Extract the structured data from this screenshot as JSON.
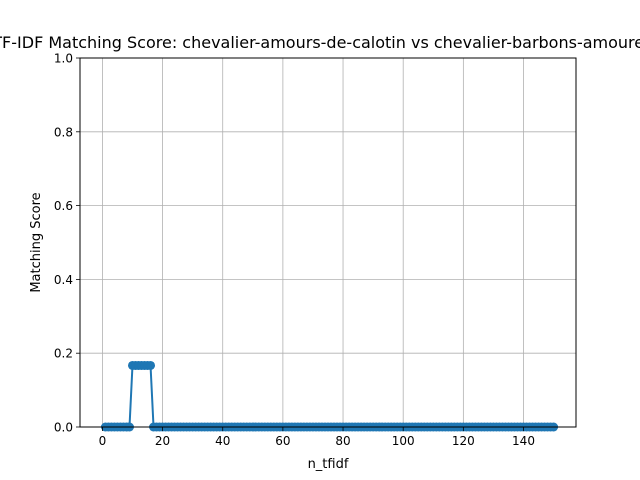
{
  "chart_data": {
    "type": "line",
    "title": "TF-IDF Matching Score: chevalier-amours-de-calotin vs chevalier-barbons-amoureux",
    "xlabel": "n_tfidf",
    "ylabel": "Matching Score",
    "xlim": [
      -7.45,
      157.45
    ],
    "ylim": [
      0,
      1
    ],
    "xticks": [
      0,
      20,
      40,
      60,
      80,
      100,
      120,
      140
    ],
    "yticks": [
      0.0,
      0.2,
      0.4,
      0.6,
      0.8,
      1.0
    ],
    "xtick_labels": [
      "0",
      "20",
      "40",
      "60",
      "80",
      "100",
      "120",
      "140"
    ],
    "ytick_labels": [
      "0.0",
      "0.2",
      "0.4",
      "0.6",
      "0.8",
      "1.0"
    ],
    "grid": true,
    "marker": "circle",
    "series": [
      {
        "color": "#1f77b4",
        "x_start": 1,
        "x_end": 150,
        "default_y": 0.0,
        "segments": [
          {
            "x_from": 10,
            "x_to": 16,
            "y": 0.1667
          }
        ]
      }
    ]
  }
}
